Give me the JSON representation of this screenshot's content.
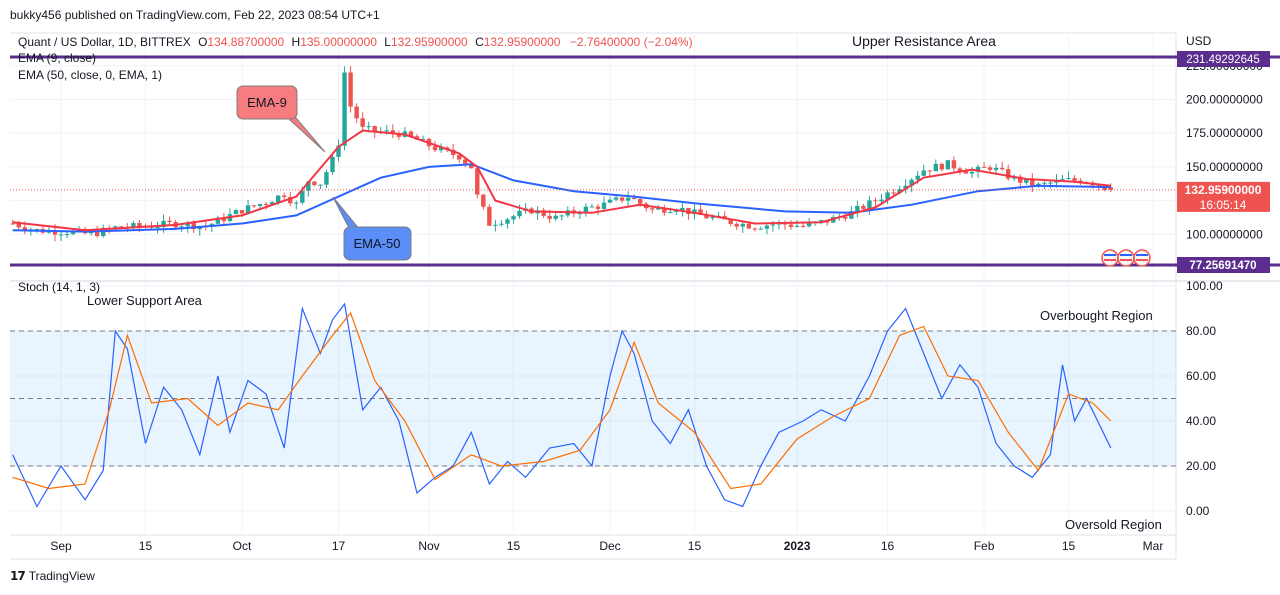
{
  "header": {
    "publisher": "bukky456 published on TradingView.com, Feb 22, 2023 08:54 UTC+1"
  },
  "footer": {
    "brand": "TradingView"
  },
  "legend": {
    "symbol": "Quant / US Dollar, 1D, BITTREX",
    "o_label": "O",
    "o": "134.88700000",
    "h_label": "H",
    "h": "135.00000000",
    "l_label": "L",
    "l": "132.95900000",
    "c_label": "C",
    "c": "132.95900000",
    "change": "−2.76400000 (−2.04%)",
    "ema9": "EMA (9, close)",
    "ema50": "EMA (50, close, 0, EMA, 1)",
    "stoch": "Stoch (14, 1, 3)"
  },
  "annotations": {
    "upper_resistance": "Upper Resistance Area",
    "lower_support": "Lower Support Area",
    "overbought": "Overbought Region",
    "oversold": "Oversold Region",
    "ema9_callout": "EMA-9",
    "ema50_callout": "EMA-50"
  },
  "colors": {
    "bull": "#26a69a",
    "bear": "#ef5350",
    "ema9": "#f23645",
    "ema50": "#2962ff",
    "level": "#5b2d8e",
    "stoch_k": "#2962ff",
    "stoch_d": "#ff6d00",
    "band": "#2196f3",
    "price_tag": "#ef5350"
  },
  "chart_data": [
    {
      "type": "candlestick",
      "title": "Quant / US Dollar, 1D, BITTREX",
      "ylabel": "USD",
      "unit": "USD",
      "ylim": [
        77.2569147,
        231.49292645
      ],
      "y_ticks": [
        "100.00000000",
        "125.00000000",
        "150.00000000",
        "175.00000000",
        "200.00000000",
        "225.00000000"
      ],
      "x_ticks": [
        "Sep",
        "15",
        "Oct",
        "17",
        "Nov",
        "15",
        "Dec",
        "15",
        "2023",
        "16",
        "Feb",
        "15",
        "Mar"
      ],
      "x_tick_dates": [
        "2022-09-01",
        "2022-09-15",
        "2022-10-01",
        "2022-10-17",
        "2022-11-01",
        "2022-11-15",
        "2022-12-01",
        "2022-12-15",
        "2023-01-01",
        "2023-01-16",
        "2023-02-01",
        "2023-02-15",
        "2023-03-01"
      ],
      "levels": [
        {
          "name": "Upper Resistance Area",
          "value": 231.49292645,
          "label": "231.49292645"
        },
        {
          "name": "Lower Support Area",
          "value": 77.2569147,
          "label": "77.25691470"
        }
      ],
      "last_price": {
        "value": 132.959,
        "label": "132.95900000",
        "countdown": "16:05:14"
      },
      "anchors": [
        [
          "2022-08-24",
          108
        ],
        [
          "2022-08-28",
          103
        ],
        [
          "2022-09-02",
          102
        ],
        [
          "2022-09-06",
          100
        ],
        [
          "2022-09-10",
          105
        ],
        [
          "2022-09-15",
          106
        ],
        [
          "2022-09-20",
          108
        ],
        [
          "2022-09-25",
          106
        ],
        [
          "2022-09-28",
          112
        ],
        [
          "2022-10-01",
          118
        ],
        [
          "2022-10-05",
          124
        ],
        [
          "2022-10-08",
          130
        ],
        [
          "2022-10-10",
          122
        ],
        [
          "2022-10-12",
          140
        ],
        [
          "2022-10-14",
          138
        ],
        [
          "2022-10-16",
          155
        ],
        [
          "2022-10-17",
          168
        ],
        [
          "2022-10-18",
          220
        ],
        [
          "2022-10-19",
          195
        ],
        [
          "2022-10-21",
          178
        ],
        [
          "2022-10-24",
          176
        ],
        [
          "2022-10-27",
          175
        ],
        [
          "2022-10-30",
          170
        ],
        [
          "2022-11-03",
          162
        ],
        [
          "2022-11-06",
          158
        ],
        [
          "2022-11-08",
          150
        ],
        [
          "2022-11-09",
          128
        ],
        [
          "2022-11-11",
          108
        ],
        [
          "2022-11-14",
          112
        ],
        [
          "2022-11-18",
          118
        ],
        [
          "2022-11-22",
          112
        ],
        [
          "2022-11-26",
          118
        ],
        [
          "2022-11-30",
          122
        ],
        [
          "2022-12-04",
          128
        ],
        [
          "2022-12-08",
          118
        ],
        [
          "2022-12-12",
          120
        ],
        [
          "2022-12-16",
          114
        ],
        [
          "2022-12-20",
          110
        ],
        [
          "2022-12-25",
          106
        ],
        [
          "2022-12-29",
          108
        ],
        [
          "2023-01-02",
          106
        ],
        [
          "2023-01-06",
          110
        ],
        [
          "2023-01-10",
          116
        ],
        [
          "2023-01-14",
          125
        ],
        [
          "2023-01-18",
          136
        ],
        [
          "2023-01-22",
          148
        ],
        [
          "2023-01-26",
          152
        ],
        [
          "2023-01-30",
          146
        ],
        [
          "2023-02-02",
          150
        ],
        [
          "2023-02-06",
          141
        ],
        [
          "2023-02-10",
          136
        ],
        [
          "2023-02-14",
          140
        ],
        [
          "2023-02-18",
          140
        ],
        [
          "2023-02-22",
          132.959
        ]
      ],
      "series": [
        {
          "name": "EMA (9, close)",
          "values": [
            [
              "2022-08-24",
              109
            ],
            [
              "2022-09-05",
              103
            ],
            [
              "2022-09-20",
              107
            ],
            [
              "2022-10-01",
              114
            ],
            [
              "2022-10-10",
              128
            ],
            [
              "2022-10-17",
              165
            ],
            [
              "2022-10-21",
              177
            ],
            [
              "2022-10-28",
              174
            ],
            [
              "2022-11-06",
              160
            ],
            [
              "2022-11-09",
              150
            ],
            [
              "2022-11-12",
              125
            ],
            [
              "2022-11-18",
              117
            ],
            [
              "2022-11-28",
              116
            ],
            [
              "2022-12-06",
              122
            ],
            [
              "2022-12-15",
              116
            ],
            [
              "2022-12-25",
              108
            ],
            [
              "2023-01-05",
              109
            ],
            [
              "2023-01-14",
              120
            ],
            [
              "2023-01-22",
              142
            ],
            [
              "2023-01-30",
              148
            ],
            [
              "2023-02-08",
              141
            ],
            [
              "2023-02-16",
              139
            ],
            [
              "2023-02-22",
              136
            ]
          ]
        },
        {
          "name": "EMA (50, close, 0, EMA, 1)",
          "values": [
            [
              "2022-08-24",
              103
            ],
            [
              "2022-09-05",
              102
            ],
            [
              "2022-09-20",
              104
            ],
            [
              "2022-10-01",
              108
            ],
            [
              "2022-10-10",
              114
            ],
            [
              "2022-10-17",
              128
            ],
            [
              "2022-10-24",
              142
            ],
            [
              "2022-11-01",
              150
            ],
            [
              "2022-11-08",
              152
            ],
            [
              "2022-11-15",
              140
            ],
            [
              "2022-11-25",
              132
            ],
            [
              "2022-12-05",
              128
            ],
            [
              "2022-12-15",
              123
            ],
            [
              "2022-12-30",
              117
            ],
            [
              "2023-01-10",
              116
            ],
            [
              "2023-01-20",
              122
            ],
            [
              "2023-01-31",
              132
            ],
            [
              "2023-02-10",
              136
            ],
            [
              "2023-02-22",
              135
            ]
          ]
        }
      ]
    },
    {
      "type": "line",
      "title": "Stoch (14, 1, 3)",
      "ylim": [
        -5,
        105
      ],
      "y_ticks": [
        "0.00",
        "20.00",
        "40.00",
        "60.00",
        "80.00",
        "100.00"
      ],
      "levels": [
        20,
        50,
        80
      ],
      "series": [
        {
          "name": "%K",
          "values": [
            [
              "2022-08-24",
              25
            ],
            [
              "2022-08-28",
              2
            ],
            [
              "2022-09-01",
              20
            ],
            [
              "2022-09-05",
              5
            ],
            [
              "2022-09-08",
              18
            ],
            [
              "2022-09-10",
              80
            ],
            [
              "2022-09-12",
              72
            ],
            [
              "2022-09-15",
              30
            ],
            [
              "2022-09-18",
              55
            ],
            [
              "2022-09-21",
              45
            ],
            [
              "2022-09-24",
              25
            ],
            [
              "2022-09-27",
              60
            ],
            [
              "2022-09-29",
              35
            ],
            [
              "2022-10-02",
              58
            ],
            [
              "2022-10-05",
              52
            ],
            [
              "2022-10-08",
              28
            ],
            [
              "2022-10-11",
              90
            ],
            [
              "2022-10-14",
              70
            ],
            [
              "2022-10-16",
              85
            ],
            [
              "2022-10-18",
              92
            ],
            [
              "2022-10-21",
              45
            ],
            [
              "2022-10-24",
              55
            ],
            [
              "2022-10-27",
              40
            ],
            [
              "2022-10-30",
              8
            ],
            [
              "2022-11-02",
              15
            ],
            [
              "2022-11-05",
              20
            ],
            [
              "2022-11-08",
              35
            ],
            [
              "2022-11-11",
              12
            ],
            [
              "2022-11-14",
              22
            ],
            [
              "2022-11-17",
              15
            ],
            [
              "2022-11-21",
              28
            ],
            [
              "2022-11-25",
              30
            ],
            [
              "2022-11-28",
              20
            ],
            [
              "2022-12-01",
              60
            ],
            [
              "2022-12-03",
              80
            ],
            [
              "2022-12-05",
              70
            ],
            [
              "2022-12-08",
              40
            ],
            [
              "2022-12-11",
              30
            ],
            [
              "2022-12-14",
              45
            ],
            [
              "2022-12-17",
              20
            ],
            [
              "2022-12-20",
              5
            ],
            [
              "2022-12-23",
              2
            ],
            [
              "2022-12-26",
              20
            ],
            [
              "2022-12-29",
              35
            ],
            [
              "2023-01-02",
              40
            ],
            [
              "2023-01-05",
              45
            ],
            [
              "2023-01-09",
              40
            ],
            [
              "2023-01-13",
              60
            ],
            [
              "2023-01-16",
              80
            ],
            [
              "2023-01-19",
              90
            ],
            [
              "2023-01-22",
              70
            ],
            [
              "2023-01-25",
              50
            ],
            [
              "2023-01-28",
              65
            ],
            [
              "2023-01-31",
              55
            ],
            [
              "2023-02-03",
              30
            ],
            [
              "2023-02-06",
              20
            ],
            [
              "2023-02-09",
              15
            ],
            [
              "2023-02-12",
              25
            ],
            [
              "2023-02-14",
              65
            ],
            [
              "2023-02-16",
              40
            ],
            [
              "2023-02-18",
              50
            ],
            [
              "2023-02-22",
              28
            ]
          ]
        },
        {
          "name": "%D",
          "values": [
            [
              "2022-08-24",
              15
            ],
            [
              "2022-08-30",
              10
            ],
            [
              "2022-09-05",
              12
            ],
            [
              "2022-09-09",
              45
            ],
            [
              "2022-09-12",
              78
            ],
            [
              "2022-09-16",
              48
            ],
            [
              "2022-09-22",
              50
            ],
            [
              "2022-09-27",
              38
            ],
            [
              "2022-10-02",
              48
            ],
            [
              "2022-10-07",
              45
            ],
            [
              "2022-10-11",
              60
            ],
            [
              "2022-10-16",
              78
            ],
            [
              "2022-10-19",
              88
            ],
            [
              "2022-10-23",
              58
            ],
            [
              "2022-10-28",
              40
            ],
            [
              "2022-11-02",
              14
            ],
            [
              "2022-11-08",
              25
            ],
            [
              "2022-11-13",
              20
            ],
            [
              "2022-11-20",
              22
            ],
            [
              "2022-11-26",
              27
            ],
            [
              "2022-12-01",
              45
            ],
            [
              "2022-12-05",
              75
            ],
            [
              "2022-12-09",
              48
            ],
            [
              "2022-12-15",
              35
            ],
            [
              "2022-12-21",
              10
            ],
            [
              "2022-12-26",
              12
            ],
            [
              "2023-01-01",
              32
            ],
            [
              "2023-01-07",
              42
            ],
            [
              "2023-01-13",
              50
            ],
            [
              "2023-01-18",
              78
            ],
            [
              "2023-01-22",
              82
            ],
            [
              "2023-01-26",
              60
            ],
            [
              "2023-01-31",
              58
            ],
            [
              "2023-02-05",
              35
            ],
            [
              "2023-02-10",
              18
            ],
            [
              "2023-02-15",
              52
            ],
            [
              "2023-02-19",
              48
            ],
            [
              "2023-02-22",
              40
            ]
          ]
        }
      ]
    }
  ]
}
